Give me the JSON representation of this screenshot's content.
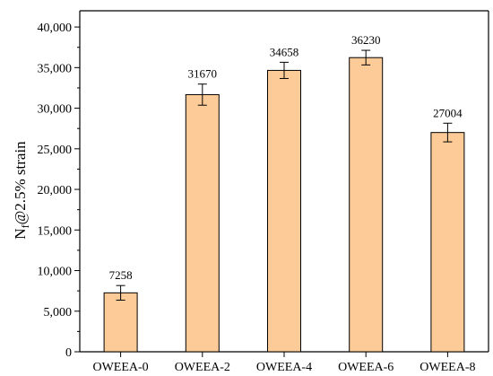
{
  "chart_data": {
    "type": "bar",
    "categories": [
      "OWEEA-0",
      "OWEEA-2",
      "OWEEA-4",
      "OWEEA-6",
      "OWEEA-8"
    ],
    "values": [
      7258,
      31670,
      34658,
      36230,
      27004
    ],
    "error": [
      900,
      1300,
      1000,
      900,
      1150
    ],
    "data_labels": [
      "7258",
      "31670",
      "34658",
      "36230",
      "27004"
    ],
    "ylabel": {
      "main": "N",
      "sub": "f",
      "rest": "@2.5% strain"
    },
    "ylim": [
      0,
      42000
    ],
    "yticks": [
      0,
      5000,
      10000,
      15000,
      20000,
      25000,
      30000,
      35000,
      40000
    ],
    "ytick_labels": [
      "0",
      "5,000",
      "10,000",
      "15,000",
      "20,000",
      "25,000",
      "30,000",
      "35,000",
      "40,000"
    ],
    "bar_color": "#FCCB97",
    "grid": false,
    "legend": "none"
  }
}
